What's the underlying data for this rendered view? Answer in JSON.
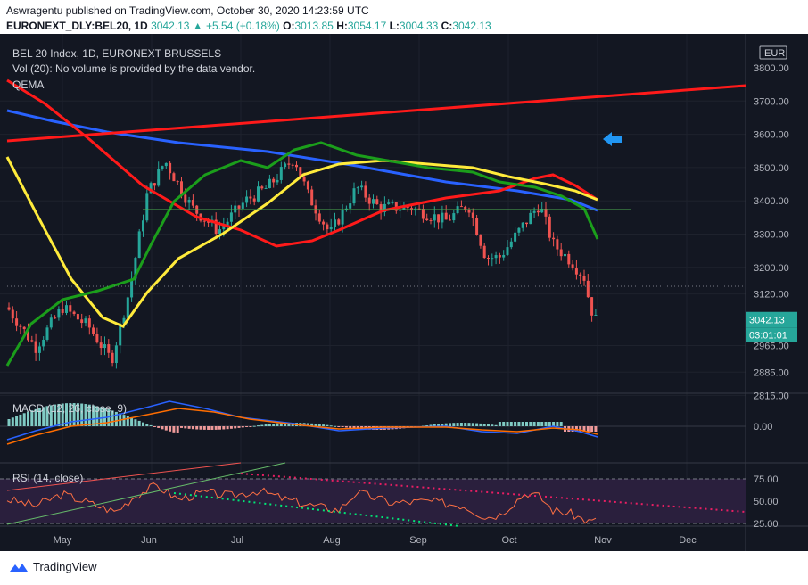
{
  "header": {
    "line1": "Aswragentu published on TradingView.com, October 30, 2020 14:23:59 UTC",
    "symbol": "EURONEXT_DLY:BEL20, 1D",
    "price": "3042.13",
    "change": "+5.54 (+0.18%)",
    "o_label": "O:",
    "o": "3013.85",
    "h_label": "H:",
    "h": "3054.17",
    "l_label": "L:",
    "l": "3004.33",
    "c_label": "C:",
    "c": "3042.13"
  },
  "legend": {
    "title": "BEL 20 Index, 1D, EURONEXT BRUSSELS",
    "volume": "Vol (20): No volume is provided by the data vendor.",
    "ema": "QEMA",
    "macd": "MACD (12, 26, close, 9)",
    "rsi": "RSI (14, close)"
  },
  "price_axis": {
    "currency": "EUR",
    "labels": [
      "3800.00",
      "3700.00",
      "3600.00",
      "3500.00",
      "3400.00",
      "3300.00",
      "3200.00",
      "3120.00",
      "2965.00",
      "2885.00",
      "2815.00"
    ],
    "last_price": "3042.13",
    "countdown": "03:01:01"
  },
  "macd_axis": {
    "labels": [
      "0.00"
    ]
  },
  "rsi_axis": {
    "labels": [
      "75.00",
      "50.00",
      "25.00"
    ]
  },
  "time_axis": {
    "labels": [
      "May",
      "Jun",
      "Jul",
      "Aug",
      "Sep",
      "Oct",
      "Nov",
      "Dec"
    ]
  },
  "footer": {
    "brand": "TradingView"
  },
  "colors": {
    "background": "#131722",
    "up": "#26a69a",
    "down": "#ef5350",
    "ema_blue": "#2962ff",
    "ema_red": "#ff1a1a",
    "ema_yellow": "#ffeb3b",
    "ema_green": "#1b9e1b",
    "arrow": "#2196f3",
    "rsi_band": "#2a1f3d"
  }
}
